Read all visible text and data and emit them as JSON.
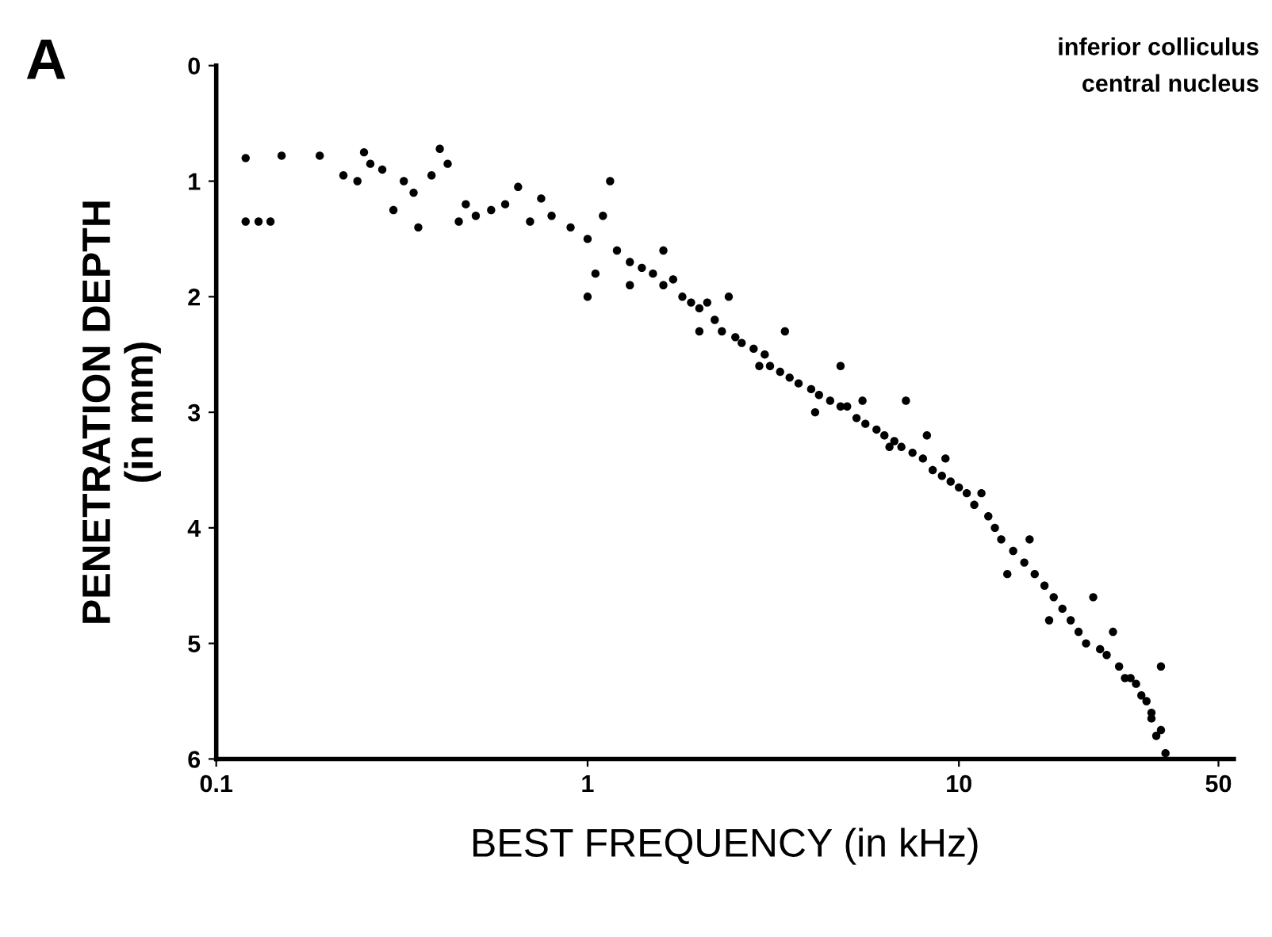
{
  "chart_data": {
    "type": "scatter",
    "xlabel": "BEST FREQUENCY (in kHz)",
    "ylabel": "PENETRATION DEPTH\n(in mm)",
    "annotations": [
      "A",
      "inferior colliculus\ncentral nucleus"
    ],
    "log": "x",
    "xlim": [
      0.1,
      55
    ],
    "xticks": [
      0.1,
      1,
      10,
      50
    ],
    "ylim": [
      6,
      0
    ],
    "yticks": [
      0,
      1,
      2,
      3,
      4,
      5,
      6
    ],
    "grid": false,
    "legend": false,
    "marker": "circle",
    "series": [
      {
        "color": "#000000",
        "x": [
          0.12,
          0.13,
          0.14,
          0.12,
          0.15,
          0.19,
          0.22,
          0.24,
          0.26,
          0.25,
          0.28,
          0.3,
          0.32,
          0.34,
          0.35,
          0.38,
          0.4,
          0.42,
          0.45,
          0.47,
          0.5,
          0.55,
          0.6,
          0.65,
          0.7,
          0.75,
          0.8,
          0.9,
          1.0,
          1.05,
          1.0,
          1.1,
          1.15,
          1.2,
          1.3,
          1.4,
          1.5,
          1.6,
          1.7,
          1.8,
          1.9,
          2.0,
          2.1,
          2.2,
          2.3,
          2.5,
          2.6,
          2.8,
          3.0,
          3.1,
          3.3,
          3.5,
          3.7,
          4.0,
          4.2,
          4.5,
          4.8,
          5.0,
          5.3,
          5.6,
          6.0,
          6.3,
          6.7,
          7.0,
          7.5,
          8.0,
          8.5,
          9.0,
          9.5,
          10.0,
          10.5,
          11,
          12,
          12.5,
          13,
          14,
          15,
          16,
          17,
          18,
          19,
          20,
          21,
          22,
          24,
          25,
          27,
          28,
          30,
          31,
          32,
          33,
          34,
          35,
          36,
          1.3,
          1.6,
          2.0,
          2.4,
          2.9,
          3.4,
          4.1,
          4.8,
          5.5,
          6.5,
          7.2,
          8.2,
          9.2,
          11.5,
          13.5,
          15.5,
          17.5,
          23,
          26,
          29,
          33,
          35
        ],
        "values": [
          1.35,
          1.35,
          1.35,
          0.8,
          0.78,
          0.78,
          0.95,
          1.0,
          0.85,
          0.75,
          0.9,
          1.25,
          1.0,
          1.1,
          1.4,
          0.95,
          0.72,
          0.85,
          1.35,
          1.2,
          1.3,
          1.25,
          1.2,
          1.05,
          1.35,
          1.15,
          1.3,
          1.4,
          1.5,
          1.8,
          2.0,
          1.3,
          1.0,
          1.6,
          1.7,
          1.75,
          1.8,
          1.9,
          1.85,
          2.0,
          2.05,
          2.1,
          2.05,
          2.2,
          2.3,
          2.35,
          2.4,
          2.45,
          2.5,
          2.6,
          2.65,
          2.7,
          2.75,
          2.8,
          2.85,
          2.9,
          2.95,
          2.95,
          3.05,
          3.1,
          3.15,
          3.2,
          3.25,
          3.3,
          3.35,
          3.4,
          3.5,
          3.55,
          3.6,
          3.65,
          3.7,
          3.8,
          3.9,
          4.0,
          4.1,
          4.2,
          4.3,
          4.4,
          4.5,
          4.6,
          4.7,
          4.8,
          4.9,
          5.0,
          5.05,
          5.1,
          5.2,
          5.3,
          5.35,
          5.45,
          5.5,
          5.65,
          5.8,
          5.75,
          5.95,
          1.9,
          1.6,
          2.3,
          2.0,
          2.6,
          2.3,
          3.0,
          2.6,
          2.9,
          3.3,
          2.9,
          3.2,
          3.4,
          3.7,
          4.4,
          4.1,
          4.8,
          4.6,
          4.9,
          5.3,
          5.6,
          5.2
        ]
      }
    ]
  }
}
